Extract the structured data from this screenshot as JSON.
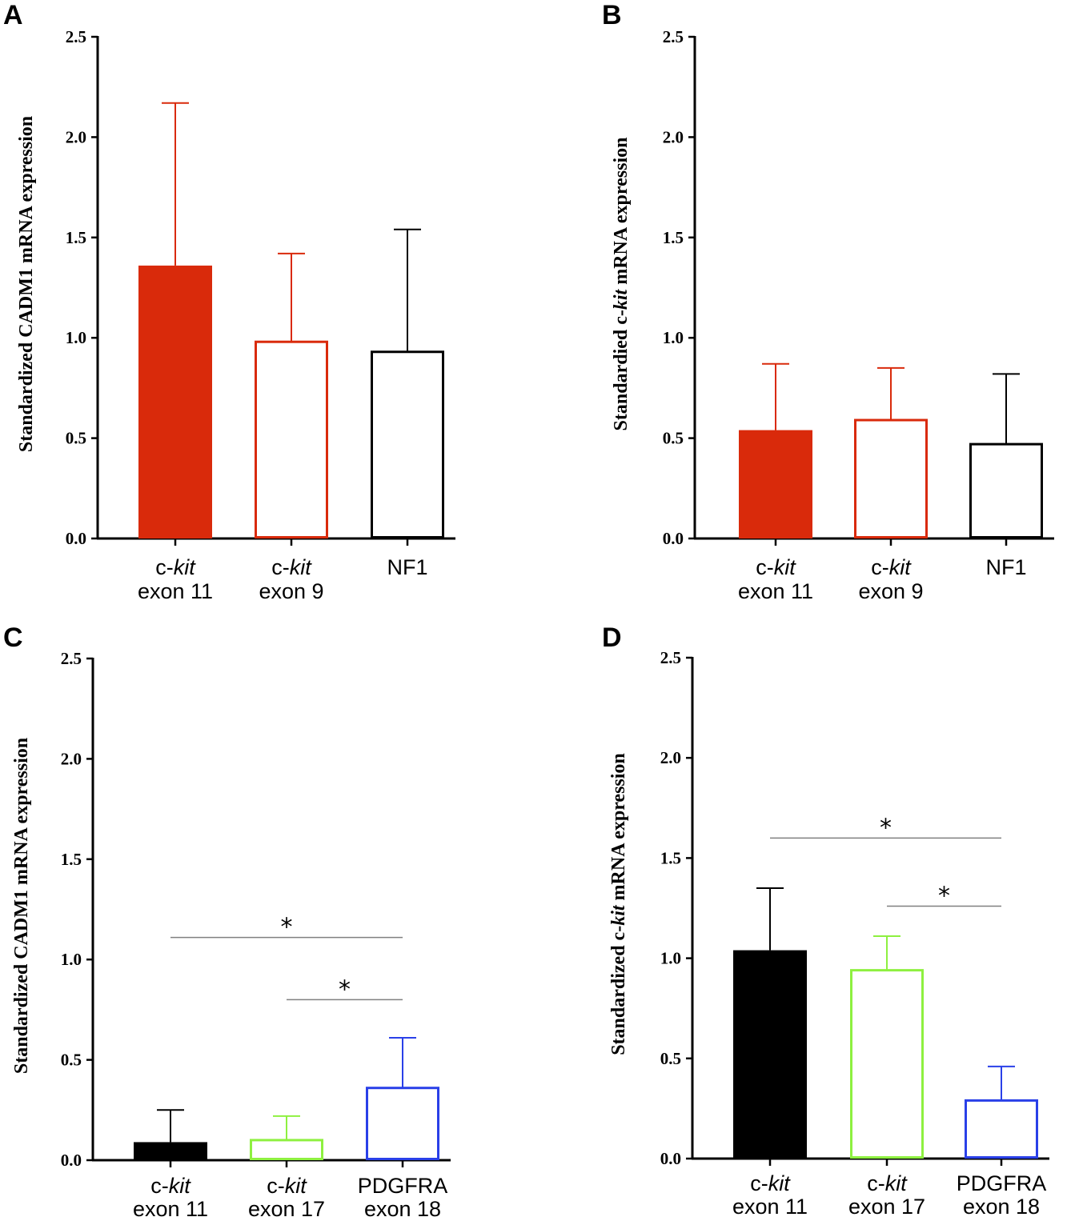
{
  "chart_data": [
    {
      "panel": "A",
      "type": "bar",
      "ylabel": "Standardized CADM1 mRNA expression",
      "ylim": [
        0,
        2.5
      ],
      "yticks": [
        "0.0",
        "0.5",
        "1.0",
        "1.5",
        "2.0",
        "2.5"
      ],
      "categories": [
        {
          "line1": "c-",
          "italic": "kit",
          "line2": "exon 11"
        },
        {
          "line1": "c-",
          "italic": "kit",
          "line2": "exon 9"
        },
        {
          "line1": "NF1",
          "italic": "",
          "line2": ""
        }
      ],
      "values": [
        1.36,
        0.98,
        0.93
      ],
      "errors": [
        0.81,
        0.44,
        0.61
      ],
      "colors": [
        "#d92a0b",
        "#d92a0b",
        "#000000"
      ],
      "filled": [
        true,
        false,
        false
      ],
      "significance": []
    },
    {
      "panel": "B",
      "type": "bar",
      "ylabel_parts": [
        "Standardied c-",
        "kit",
        " mRNA expression"
      ],
      "ylim": [
        0,
        2.5
      ],
      "yticks": [
        "0.0",
        "0.5",
        "1.0",
        "1.5",
        "2.0",
        "2.5"
      ],
      "categories": [
        {
          "line1": "c-",
          "italic": "kit",
          "line2": "exon 11"
        },
        {
          "line1": "c-",
          "italic": "kit",
          "line2": "exon 9"
        },
        {
          "line1": "NF1",
          "italic": "",
          "line2": ""
        }
      ],
      "values": [
        0.54,
        0.59,
        0.47
      ],
      "errors": [
        0.33,
        0.26,
        0.35
      ],
      "colors": [
        "#d92a0b",
        "#d92a0b",
        "#000000"
      ],
      "filled": [
        true,
        false,
        false
      ],
      "significance": []
    },
    {
      "panel": "C",
      "type": "bar",
      "ylabel": "Standardized CADM1 mRNA expression",
      "ylim": [
        0,
        2.5
      ],
      "yticks": [
        "0.0",
        "0.5",
        "1.0",
        "1.5",
        "2.0",
        "2.5"
      ],
      "categories": [
        {
          "line1": "c-",
          "italic": "kit",
          "line2": "exon 11"
        },
        {
          "line1": "c-",
          "italic": "kit",
          "line2": "exon 17"
        },
        {
          "line1": "PDGFRA",
          "italic": "",
          "line2": "exon 18"
        }
      ],
      "values": [
        0.09,
        0.1,
        0.36
      ],
      "errors": [
        0.16,
        0.12,
        0.25
      ],
      "colors": [
        "#000000",
        "#8ef040",
        "#2a40e8"
      ],
      "filled": [
        true,
        false,
        false
      ],
      "significance": [
        {
          "from": 0,
          "to": 2,
          "y": 1.11,
          "label": "*"
        },
        {
          "from": 1,
          "to": 2,
          "y": 0.8,
          "label": "*"
        }
      ]
    },
    {
      "panel": "D",
      "type": "bar",
      "ylabel_parts": [
        "Standardized c-",
        "kit",
        " mRNA expression"
      ],
      "ylim": [
        0,
        2.5
      ],
      "yticks": [
        "0.0",
        "0.5",
        "1.0",
        "1.5",
        "2.0",
        "2.5"
      ],
      "categories": [
        {
          "line1": "c-",
          "italic": "kit",
          "line2": "exon 11"
        },
        {
          "line1": "c-",
          "italic": "kit",
          "line2": "exon 17"
        },
        {
          "line1": "PDGFRA",
          "italic": "",
          "line2": "exon 18"
        }
      ],
      "values": [
        1.04,
        0.94,
        0.29
      ],
      "errors": [
        0.31,
        0.17,
        0.17
      ],
      "colors": [
        "#000000",
        "#8ef040",
        "#2a40e8"
      ],
      "filled": [
        true,
        false,
        false
      ],
      "significance": [
        {
          "from": 0,
          "to": 2,
          "y": 1.6,
          "label": "*"
        },
        {
          "from": 1,
          "to": 2,
          "y": 1.26,
          "label": "*"
        }
      ]
    }
  ]
}
